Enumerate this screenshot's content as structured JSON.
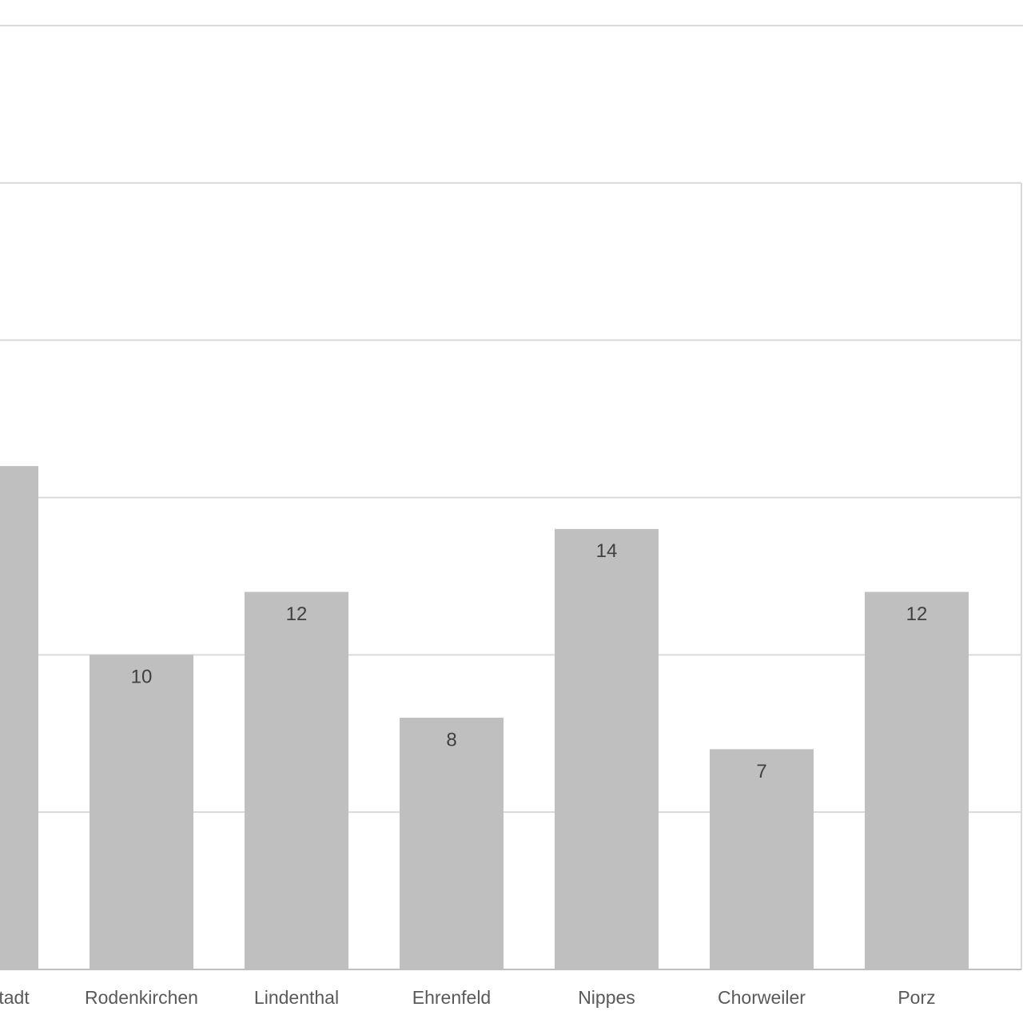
{
  "chart_data": {
    "type": "bar",
    "categories": [
      "Innenstadt",
      "Rodenkirchen",
      "Lindenthal",
      "Ehrenfeld",
      "Nippes",
      "Chorweiler",
      "Porz"
    ],
    "values": [
      16,
      10,
      12,
      8,
      14,
      7,
      12
    ],
    "color": "#bfbfbf",
    "ylim": [
      0,
      30
    ],
    "yticks": [
      0,
      5,
      10,
      15,
      20,
      25,
      30
    ],
    "grid": true
  }
}
